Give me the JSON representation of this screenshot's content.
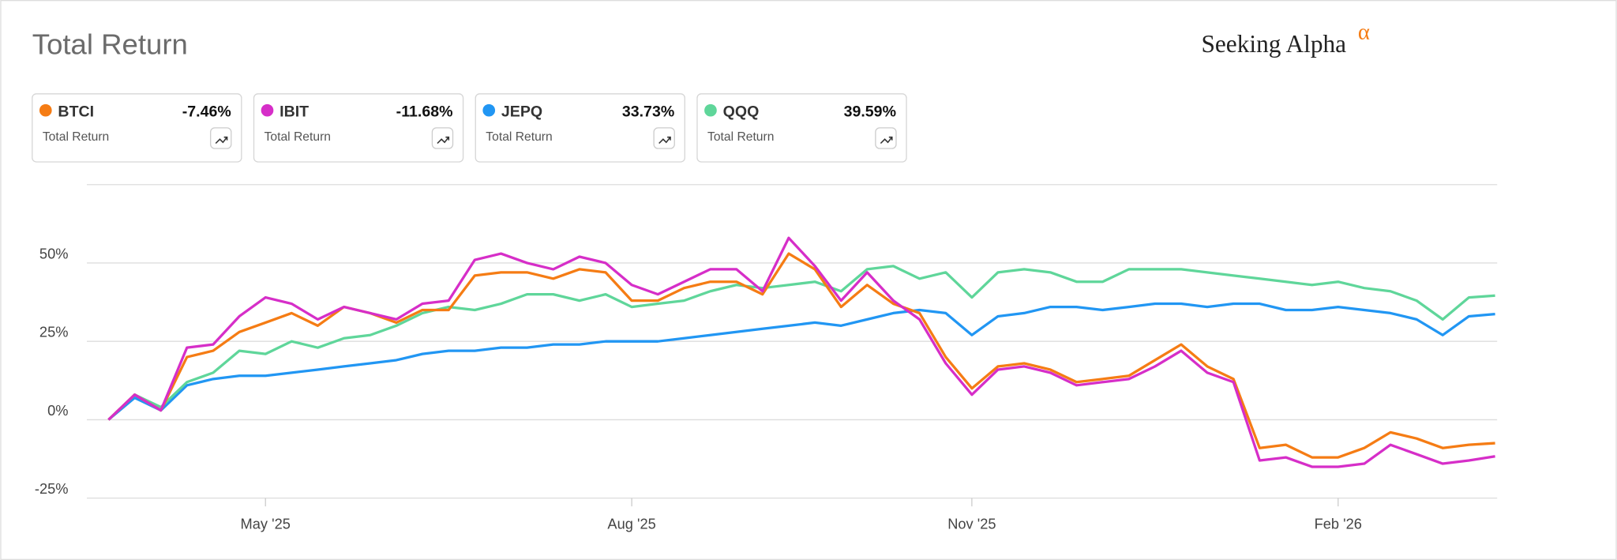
{
  "brand": "Seeking Alpha",
  "brand_mark": "α",
  "chart_data": {
    "type": "line",
    "title": "Total Return",
    "legend_caption": "Total Return",
    "categories": [
      null,
      null,
      null,
      null,
      null,
      null,
      "May '25",
      null,
      null,
      null,
      null,
      null,
      null,
      null,
      null,
      null,
      null,
      null,
      null,
      null,
      "Aug '25",
      null,
      null,
      null,
      null,
      null,
      null,
      null,
      null,
      null,
      null,
      null,
      null,
      "Nov '25",
      null,
      null,
      null,
      null,
      null,
      null,
      null,
      null,
      null,
      null,
      null,
      null,
      null,
      "Feb '26",
      null,
      null,
      null,
      null,
      null,
      null
    ],
    "series": [
      {
        "name": "BTCI",
        "color": "#f57c14",
        "last_value_label": "-7.46%",
        "values": [
          0,
          8,
          3,
          20,
          22,
          28,
          31,
          34,
          30,
          36,
          34,
          31,
          35,
          35,
          46,
          47,
          47,
          45,
          48,
          47,
          38,
          38,
          42,
          44,
          44,
          40,
          53,
          48,
          36,
          43,
          37,
          34,
          20,
          10,
          17,
          18,
          16,
          12,
          13,
          14,
          19,
          24,
          17,
          13,
          -9,
          -8,
          -12,
          -12,
          -9,
          -4,
          -6,
          -9,
          -8,
          -7.46
        ]
      },
      {
        "name": "IBIT",
        "color": "#d62ec8",
        "last_value_label": "-11.68%",
        "values": [
          0,
          8,
          3,
          23,
          24,
          33,
          39,
          37,
          32,
          36,
          34,
          32,
          37,
          38,
          51,
          53,
          50,
          48,
          52,
          50,
          43,
          40,
          44,
          48,
          48,
          41,
          58,
          49,
          38,
          47,
          38,
          32,
          18,
          8,
          16,
          17,
          15,
          11,
          12,
          13,
          17,
          22,
          15,
          12,
          -13,
          -12,
          -15,
          -15,
          -14,
          -8,
          -11,
          -14,
          -13,
          -11.68
        ]
      },
      {
        "name": "JEPQ",
        "color": "#2196f3",
        "last_value_label": "33.73%",
        "values": [
          0,
          7,
          3,
          11,
          13,
          14,
          14,
          15,
          16,
          17,
          18,
          19,
          21,
          22,
          22,
          23,
          23,
          24,
          24,
          25,
          25,
          25,
          26,
          27,
          28,
          29,
          30,
          31,
          30,
          32,
          34,
          35,
          34,
          27,
          33,
          34,
          36,
          36,
          35,
          36,
          37,
          37,
          36,
          37,
          37,
          35,
          35,
          36,
          35,
          34,
          32,
          27,
          33,
          33.73
        ]
      },
      {
        "name": "QQQ",
        "color": "#5fd69a",
        "last_value_label": "39.59%",
        "values": [
          0,
          8,
          4,
          12,
          15,
          22,
          21,
          25,
          23,
          26,
          27,
          30,
          34,
          36,
          35,
          37,
          40,
          40,
          38,
          40,
          36,
          37,
          38,
          41,
          43,
          42,
          43,
          44,
          41,
          48,
          49,
          45,
          47,
          39,
          47,
          48,
          47,
          44,
          44,
          48,
          48,
          48,
          47,
          46,
          45,
          44,
          43,
          44,
          42,
          41,
          38,
          32,
          39,
          39.59
        ]
      }
    ],
    "ylim": [
      -25,
      75
    ],
    "yticks": [
      {
        "value": -25,
        "label": "-25%"
      },
      {
        "value": 0,
        "label": "0%"
      },
      {
        "value": 25,
        "label": "25%"
      },
      {
        "value": 50,
        "label": "50%"
      }
    ],
    "grid": true
  }
}
